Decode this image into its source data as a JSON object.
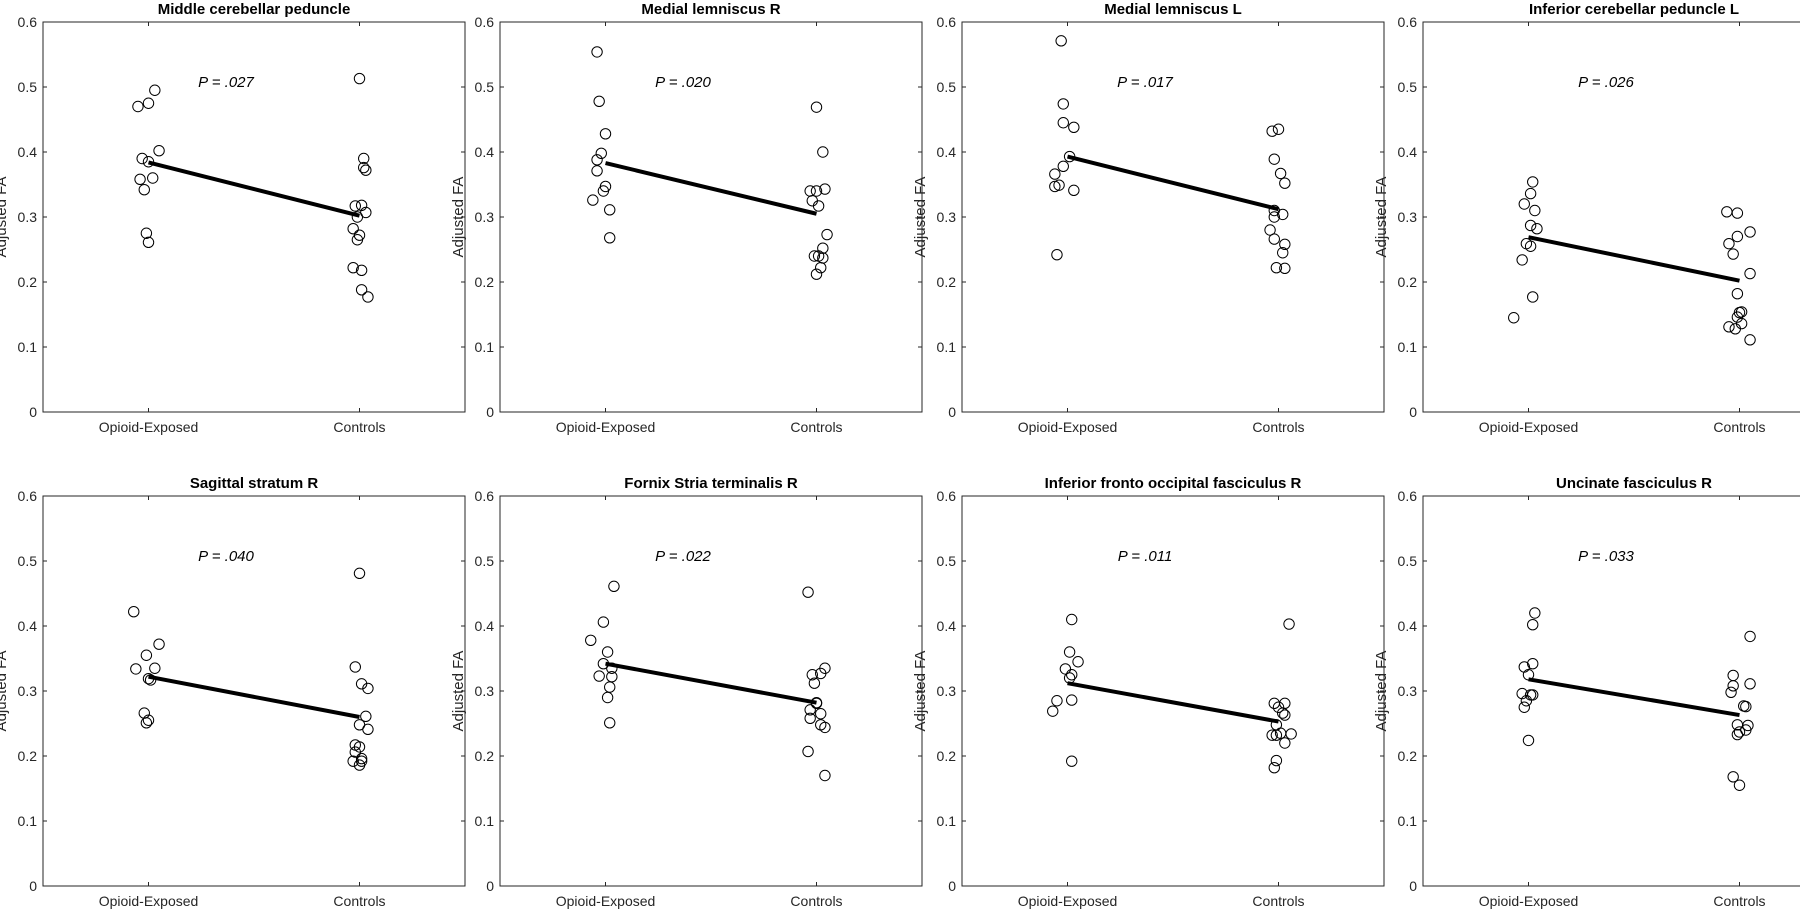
{
  "chart_data": [
    {
      "type": "scatter",
      "title": "Middle cerebellar peduncle",
      "ylabel": "Adjusted FA",
      "ylim": [
        0,
        0.6
      ],
      "yticks": [
        "0",
        "0.1",
        "0.2",
        "0.3",
        "0.4",
        "0.5",
        "0.6"
      ],
      "categories": [
        "Opioid-Exposed",
        "Controls"
      ],
      "annotation": "P = .027",
      "series": [
        {
          "category": "Opioid-Exposed",
          "points": [
            [
              0.95,
              0.47
            ],
            [
              1.0,
              0.475
            ],
            [
              1.03,
              0.495
            ],
            [
              0.97,
              0.39
            ],
            [
              1.0,
              0.385
            ],
            [
              1.05,
              0.402
            ],
            [
              0.96,
              0.358
            ],
            [
              1.02,
              0.36
            ],
            [
              0.98,
              0.342
            ],
            [
              0.99,
              0.275
            ],
            [
              1.0,
              0.261
            ]
          ]
        },
        {
          "category": "Controls",
          "points": [
            [
              1.0,
              0.513
            ],
            [
              1.02,
              0.39
            ],
            [
              1.02,
              0.376
            ],
            [
              1.03,
              0.372
            ],
            [
              0.98,
              0.317
            ],
            [
              1.01,
              0.318
            ],
            [
              1.03,
              0.307
            ],
            [
              0.99,
              0.3
            ],
            [
              0.97,
              0.282
            ],
            [
              1.0,
              0.272
            ],
            [
              0.99,
              0.265
            ],
            [
              0.97,
              0.222
            ],
            [
              1.01,
              0.218
            ],
            [
              1.01,
              0.188
            ],
            [
              1.04,
              0.177
            ]
          ]
        }
      ],
      "mean_line": [
        0.384,
        0.302
      ]
    },
    {
      "type": "scatter",
      "title": "Medial lemniscus R",
      "ylabel": "Adjusted FA",
      "ylim": [
        0,
        0.6
      ],
      "yticks": [
        "0",
        "0.1",
        "0.2",
        "0.3",
        "0.4",
        "0.5",
        "0.6"
      ],
      "categories": [
        "Opioid-Exposed",
        "Controls"
      ],
      "annotation": "P = .020",
      "series": [
        {
          "category": "Opioid-Exposed",
          "points": [
            [
              0.96,
              0.554
            ],
            [
              0.97,
              0.478
            ],
            [
              1.0,
              0.428
            ],
            [
              0.98,
              0.398
            ],
            [
              0.96,
              0.388
            ],
            [
              0.96,
              0.371
            ],
            [
              1.0,
              0.347
            ],
            [
              0.99,
              0.34
            ],
            [
              0.94,
              0.326
            ],
            [
              1.02,
              0.311
            ],
            [
              1.02,
              0.268
            ]
          ]
        },
        {
          "category": "Controls",
          "points": [
            [
              1.0,
              0.469
            ],
            [
              1.03,
              0.4
            ],
            [
              0.97,
              0.34
            ],
            [
              1.0,
              0.34
            ],
            [
              1.04,
              0.343
            ],
            [
              0.98,
              0.325
            ],
            [
              1.01,
              0.317
            ],
            [
              1.05,
              0.273
            ],
            [
              1.03,
              0.252
            ],
            [
              1.01,
              0.24
            ],
            [
              0.99,
              0.24
            ],
            [
              1.03,
              0.237
            ],
            [
              1.02,
              0.222
            ],
            [
              1.0,
              0.212
            ]
          ]
        }
      ],
      "mean_line": [
        0.383,
        0.305
      ]
    },
    {
      "type": "scatter",
      "title": "Medial lemniscus L",
      "ylabel": "Adjusted FA",
      "ylim": [
        0,
        0.6
      ],
      "yticks": [
        "0",
        "0.1",
        "0.2",
        "0.3",
        "0.4",
        "0.5",
        "0.6"
      ],
      "categories": [
        "Opioid-Exposed",
        "Controls"
      ],
      "annotation": "P = .017",
      "series": [
        {
          "category": "Opioid-Exposed",
          "points": [
            [
              0.97,
              0.571
            ],
            [
              0.98,
              0.474
            ],
            [
              0.98,
              0.445
            ],
            [
              1.03,
              0.438
            ],
            [
              1.01,
              0.393
            ],
            [
              0.98,
              0.378
            ],
            [
              0.94,
              0.366
            ],
            [
              0.96,
              0.349
            ],
            [
              0.94,
              0.347
            ],
            [
              1.03,
              0.341
            ],
            [
              0.95,
              0.242
            ]
          ]
        },
        {
          "category": "Controls",
          "points": [
            [
              0.97,
              0.432
            ],
            [
              1.0,
              0.435
            ],
            [
              0.98,
              0.389
            ],
            [
              1.01,
              0.367
            ],
            [
              1.03,
              0.352
            ],
            [
              0.98,
              0.31
            ],
            [
              1.02,
              0.304
            ],
            [
              0.98,
              0.3
            ],
            [
              0.96,
              0.28
            ],
            [
              0.98,
              0.266
            ],
            [
              1.03,
              0.258
            ],
            [
              1.02,
              0.245
            ],
            [
              0.99,
              0.222
            ],
            [
              1.03,
              0.221
            ]
          ]
        }
      ],
      "mean_line": [
        0.393,
        0.312
      ]
    },
    {
      "type": "scatter",
      "title": "Inferior cerebellar peduncle L",
      "ylabel": "Adjusted FA",
      "ylim": [
        0,
        0.6
      ],
      "yticks": [
        "0",
        "0.1",
        "0.2",
        "0.3",
        "0.4",
        "0.5",
        "0.6"
      ],
      "categories": [
        "Opioid-Exposed",
        "Controls"
      ],
      "annotation": "P = .026",
      "series": [
        {
          "category": "Opioid-Exposed",
          "points": [
            [
              1.02,
              0.354
            ],
            [
              1.01,
              0.336
            ],
            [
              0.98,
              0.32
            ],
            [
              1.03,
              0.31
            ],
            [
              1.01,
              0.287
            ],
            [
              1.04,
              0.282
            ],
            [
              0.99,
              0.259
            ],
            [
              1.01,
              0.255
            ],
            [
              0.97,
              0.234
            ],
            [
              1.02,
              0.177
            ],
            [
              0.93,
              0.145
            ]
          ]
        },
        {
          "category": "Controls",
          "points": [
            [
              0.94,
              0.308
            ],
            [
              0.99,
              0.306
            ],
            [
              1.05,
              0.277
            ],
            [
              0.99,
              0.27
            ],
            [
              0.95,
              0.259
            ],
            [
              0.97,
              0.243
            ],
            [
              1.05,
              0.213
            ],
            [
              0.99,
              0.182
            ],
            [
              1.01,
              0.154
            ],
            [
              1.0,
              0.153
            ],
            [
              0.99,
              0.146
            ],
            [
              1.01,
              0.136
            ],
            [
              0.95,
              0.131
            ],
            [
              0.98,
              0.128
            ],
            [
              1.05,
              0.111
            ]
          ]
        }
      ],
      "mean_line": [
        0.269,
        0.202
      ]
    },
    {
      "type": "scatter",
      "title": "Sagittal stratum  R",
      "ylabel": "Adjusted FA",
      "ylim": [
        0,
        0.6
      ],
      "yticks": [
        "0",
        "0.1",
        "0.2",
        "0.3",
        "0.4",
        "0.5",
        "0.6"
      ],
      "categories": [
        "Opioid-Exposed",
        "Controls"
      ],
      "annotation": "P = .040",
      "series": [
        {
          "category": "Opioid-Exposed",
          "points": [
            [
              0.93,
              0.422
            ],
            [
              1.05,
              0.372
            ],
            [
              0.99,
              0.355
            ],
            [
              0.94,
              0.334
            ],
            [
              1.03,
              0.335
            ],
            [
              1.0,
              0.319
            ],
            [
              1.01,
              0.317
            ],
            [
              0.98,
              0.266
            ],
            [
              1.0,
              0.255
            ],
            [
              0.99,
              0.251
            ]
          ]
        },
        {
          "category": "Controls",
          "points": [
            [
              1.0,
              0.481
            ],
            [
              0.98,
              0.337
            ],
            [
              1.01,
              0.311
            ],
            [
              1.04,
              0.304
            ],
            [
              1.03,
              0.261
            ],
            [
              1.0,
              0.248
            ],
            [
              1.04,
              0.241
            ],
            [
              0.98,
              0.217
            ],
            [
              1.0,
              0.214
            ],
            [
              0.98,
              0.206
            ],
            [
              0.97,
              0.192
            ],
            [
              1.01,
              0.196
            ],
            [
              1.01,
              0.192
            ],
            [
              1.0,
              0.186
            ]
          ]
        }
      ],
      "mean_line": [
        0.322,
        0.26
      ]
    },
    {
      "type": "scatter",
      "title": "Fornix Stria terminalis  R",
      "ylabel": "Adjusted FA",
      "ylim": [
        0,
        0.6
      ],
      "yticks": [
        "0",
        "0.1",
        "0.2",
        "0.3",
        "0.4",
        "0.5",
        "0.6"
      ],
      "categories": [
        "Opioid-Exposed",
        "Controls"
      ],
      "annotation": "P = .022",
      "series": [
        {
          "category": "Opioid-Exposed",
          "points": [
            [
              1.04,
              0.461
            ],
            [
              0.99,
              0.406
            ],
            [
              0.93,
              0.378
            ],
            [
              1.01,
              0.36
            ],
            [
              0.99,
              0.342
            ],
            [
              1.03,
              0.335
            ],
            [
              1.03,
              0.322
            ],
            [
              0.97,
              0.323
            ],
            [
              1.02,
              0.306
            ],
            [
              1.01,
              0.29
            ],
            [
              1.02,
              0.251
            ]
          ]
        },
        {
          "category": "Controls",
          "points": [
            [
              0.96,
              0.452
            ],
            [
              1.04,
              0.335
            ],
            [
              0.98,
              0.325
            ],
            [
              1.02,
              0.327
            ],
            [
              0.99,
              0.312
            ],
            [
              1.0,
              0.282
            ],
            [
              1.0,
              0.281
            ],
            [
              0.97,
              0.271
            ],
            [
              1.02,
              0.265
            ],
            [
              0.97,
              0.258
            ],
            [
              1.02,
              0.248
            ],
            [
              1.04,
              0.244
            ],
            [
              0.96,
              0.207
            ],
            [
              1.04,
              0.17
            ]
          ]
        }
      ],
      "mean_line": [
        0.342,
        0.282
      ]
    },
    {
      "type": "scatter",
      "title": "Inferior fronto occipital fasciculus R",
      "ylabel": "Adjusted FA",
      "ylim": [
        0,
        0.6
      ],
      "yticks": [
        "0",
        "0.1",
        "0.2",
        "0.3",
        "0.4",
        "0.5",
        "0.6"
      ],
      "categories": [
        "Opioid-Exposed",
        "Controls"
      ],
      "annotation": "P = .011",
      "series": [
        {
          "category": "Opioid-Exposed",
          "points": [
            [
              1.02,
              0.41
            ],
            [
              1.01,
              0.36
            ],
            [
              1.05,
              0.345
            ],
            [
              0.99,
              0.334
            ],
            [
              1.02,
              0.325
            ],
            [
              1.01,
              0.32
            ],
            [
              0.95,
              0.285
            ],
            [
              1.02,
              0.286
            ],
            [
              0.93,
              0.269
            ],
            [
              1.02,
              0.192
            ]
          ]
        },
        {
          "category": "Controls",
          "points": [
            [
              1.05,
              0.403
            ],
            [
              0.98,
              0.281
            ],
            [
              1.03,
              0.281
            ],
            [
              1.0,
              0.275
            ],
            [
              1.02,
              0.266
            ],
            [
              1.03,
              0.263
            ],
            [
              0.99,
              0.248
            ],
            [
              1.01,
              0.235
            ],
            [
              1.06,
              0.234
            ],
            [
              0.99,
              0.232
            ],
            [
              0.97,
              0.232
            ],
            [
              1.03,
              0.22
            ],
            [
              0.99,
              0.193
            ],
            [
              0.98,
              0.182
            ]
          ]
        }
      ],
      "mean_line": [
        0.312,
        0.253
      ]
    },
    {
      "type": "scatter",
      "title": "Uncinate fasciculus R",
      "ylabel": "Adjusted FA",
      "ylim": [
        0,
        0.6
      ],
      "yticks": [
        "0",
        "0.1",
        "0.2",
        "0.3",
        "0.4",
        "0.5",
        "0.6"
      ],
      "categories": [
        "Opioid-Exposed",
        "Controls"
      ],
      "annotation": "P = .033",
      "series": [
        {
          "category": "Opioid-Exposed",
          "points": [
            [
              1.03,
              0.42
            ],
            [
              1.02,
              0.402
            ],
            [
              0.98,
              0.337
            ],
            [
              1.02,
              0.342
            ],
            [
              1.0,
              0.325
            ],
            [
              0.97,
              0.296
            ],
            [
              1.01,
              0.294
            ],
            [
              1.02,
              0.294
            ],
            [
              0.99,
              0.285
            ],
            [
              0.98,
              0.275
            ],
            [
              1.0,
              0.224
            ]
          ]
        },
        {
          "category": "Controls",
          "points": [
            [
              1.05,
              0.384
            ],
            [
              0.97,
              0.324
            ],
            [
              1.05,
              0.311
            ],
            [
              0.97,
              0.308
            ],
            [
              0.96,
              0.298
            ],
            [
              1.02,
              0.277
            ],
            [
              1.03,
              0.276
            ],
            [
              0.99,
              0.248
            ],
            [
              1.04,
              0.247
            ],
            [
              1.03,
              0.24
            ],
            [
              1.0,
              0.237
            ],
            [
              0.99,
              0.233
            ],
            [
              0.97,
              0.168
            ],
            [
              1.0,
              0.155
            ]
          ]
        }
      ],
      "mean_line": [
        0.318,
        0.263
      ]
    }
  ]
}
